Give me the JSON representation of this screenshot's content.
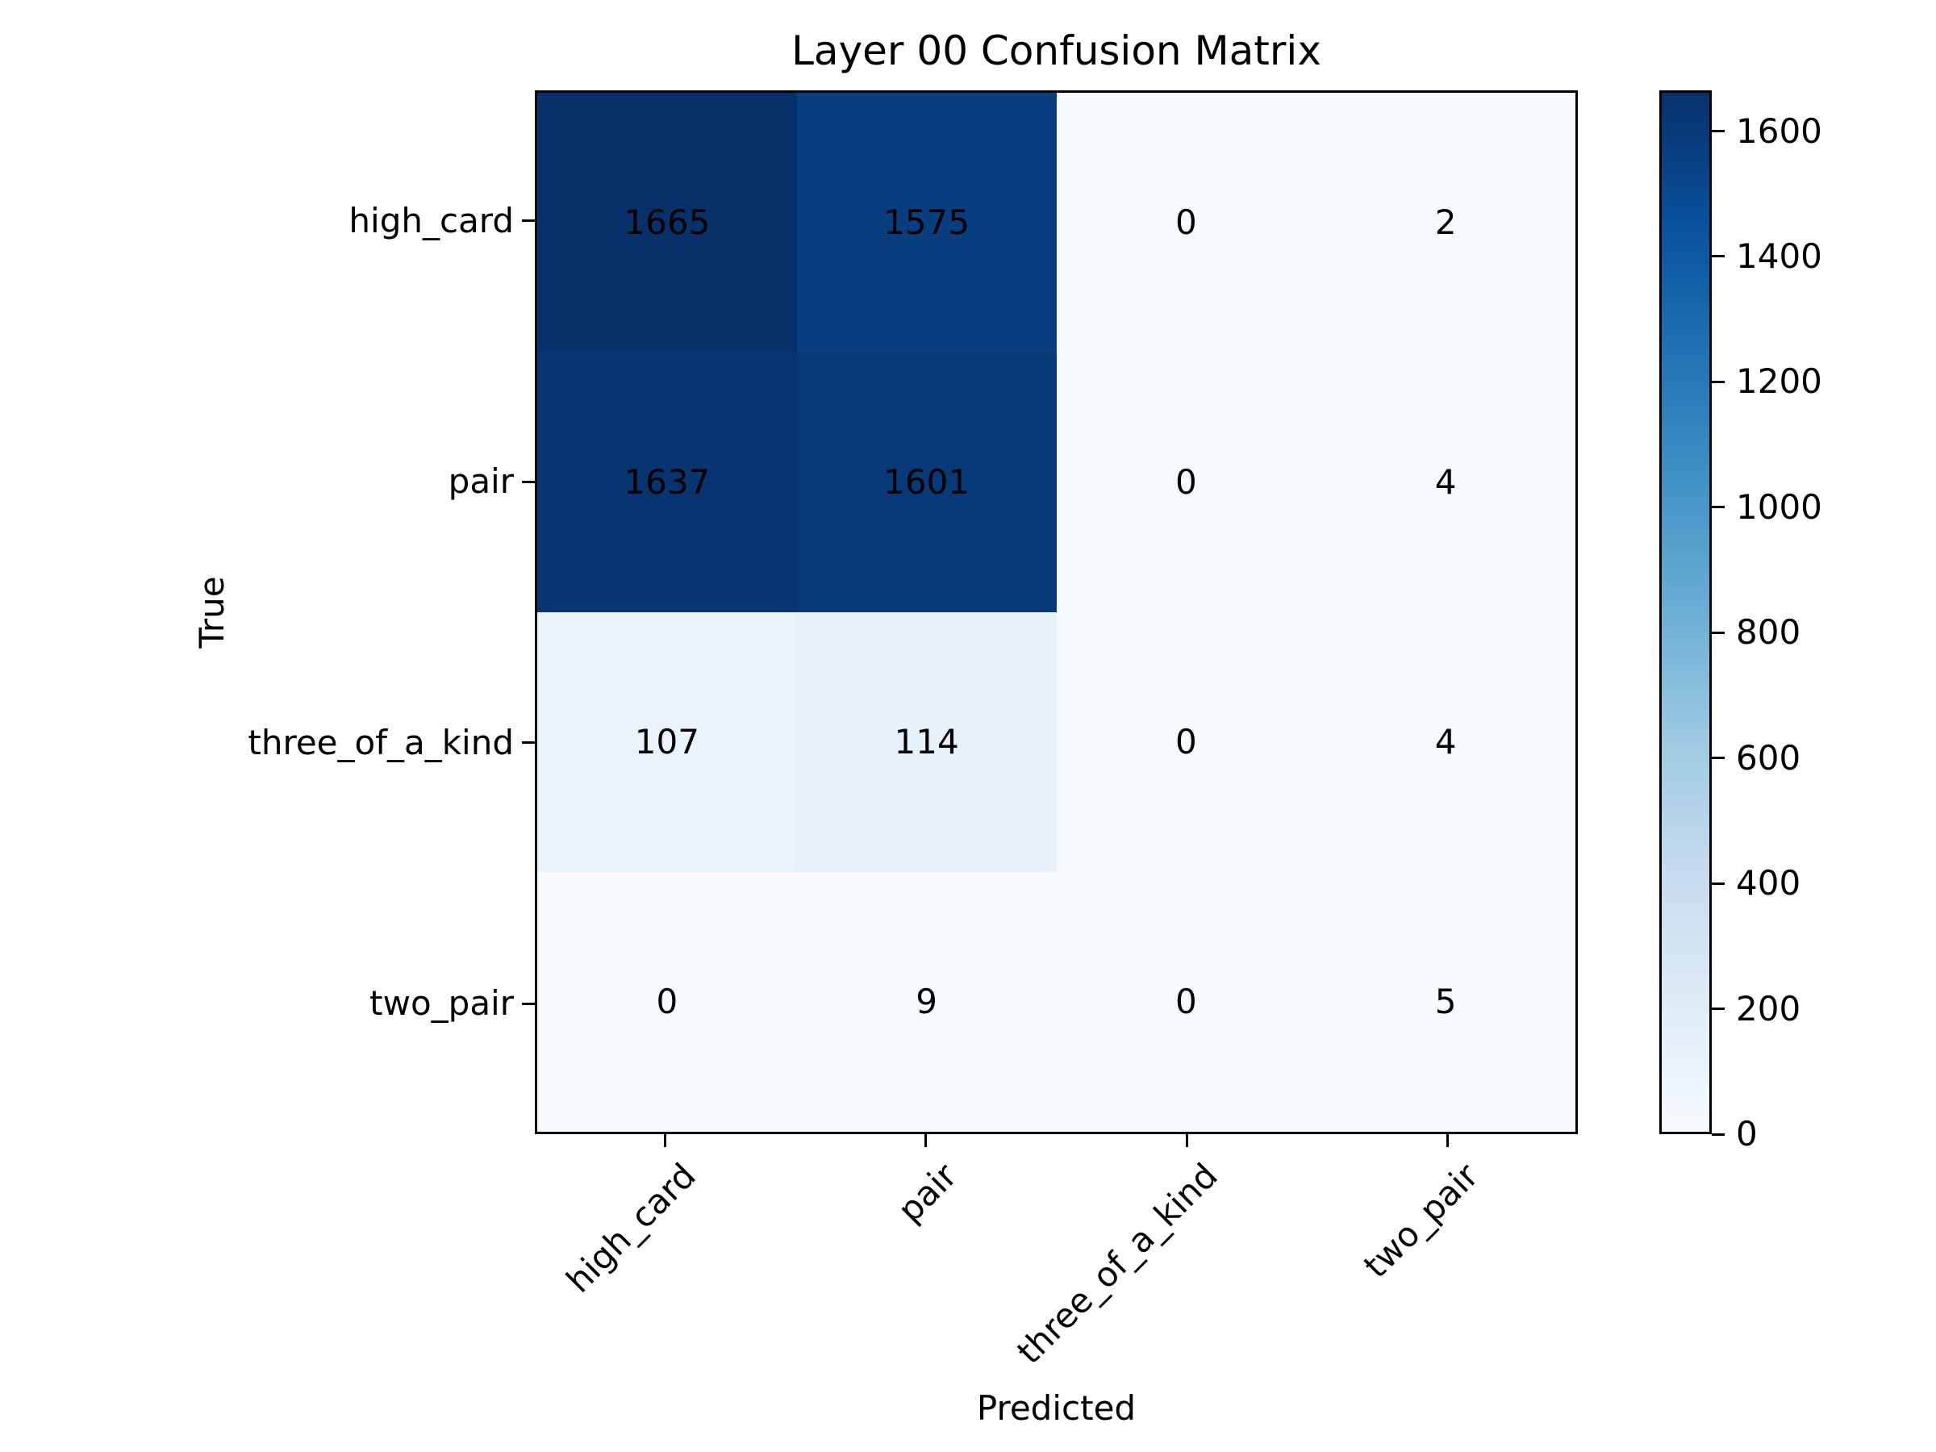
{
  "chart_data": {
    "type": "heatmap",
    "title": "Layer 00 Confusion Matrix",
    "xlabel": "Predicted",
    "ylabel": "True",
    "x_tick_labels": [
      "high_card",
      "pair",
      "three_of_a_kind",
      "two_pair"
    ],
    "y_tick_labels": [
      "high_card",
      "pair",
      "three_of_a_kind",
      "two_pair"
    ],
    "matrix": [
      [
        1665,
        1575,
        0,
        2
      ],
      [
        1637,
        1601,
        0,
        4
      ],
      [
        107,
        114,
        0,
        4
      ],
      [
        0,
        9,
        0,
        5
      ]
    ],
    "vmin": 0,
    "vmax": 1665,
    "colormap": "Blues",
    "colormap_stops": [
      "#f7fbff",
      "#deebf7",
      "#c6dbef",
      "#9ecae1",
      "#6baed6",
      "#4292c6",
      "#2171b5",
      "#08519c",
      "#08306b"
    ],
    "colorbar_ticks": [
      0,
      200,
      400,
      600,
      800,
      1000,
      1200,
      1400,
      1600
    ],
    "annotation_color": "#000000",
    "axes_edge_color": "#000000",
    "background_color": "#ffffff",
    "grid": false,
    "legend_position": "right-colorbar"
  }
}
